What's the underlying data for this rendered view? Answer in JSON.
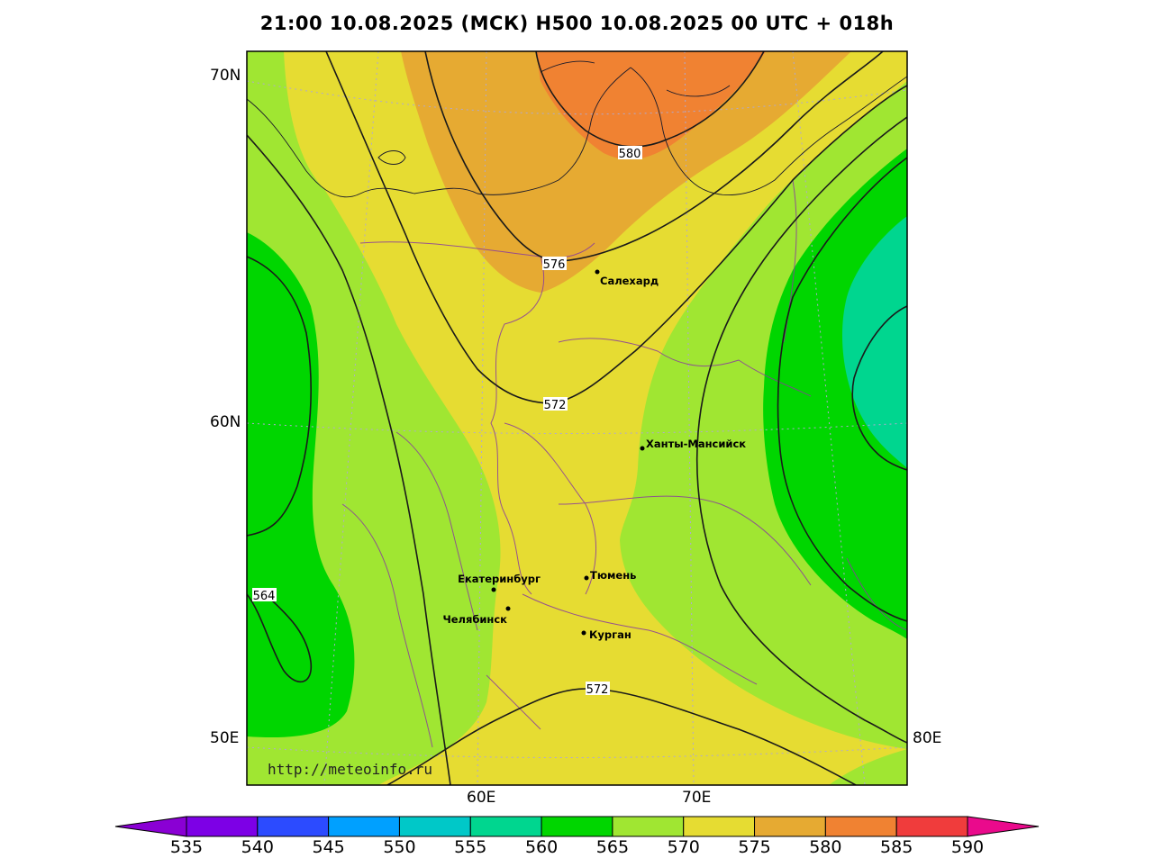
{
  "title": "21:00 10.08.2025 (МСК) H500  10.08.2025 00 UTC + 018h",
  "axes": {
    "lat_labels": [
      "70N",
      "60N",
      "50E",
      "80E"
    ],
    "lon_labels": [
      "60E",
      "70E"
    ]
  },
  "cities": [
    {
      "name": "Салехард"
    },
    {
      "name": "Ханты-Мансийск"
    },
    {
      "name": "Екатеринбург"
    },
    {
      "name": "Тюмень"
    },
    {
      "name": "Челябинск"
    },
    {
      "name": "Курган"
    }
  ],
  "contour_labels": [
    "580",
    "576",
    "572",
    "572",
    "564"
  ],
  "watermark": "http://meteoinfo.ru",
  "colorbar": {
    "ticks": [
      "535",
      "540",
      "545",
      "550",
      "555",
      "560",
      "565",
      "570",
      "575",
      "580",
      "585",
      "590"
    ],
    "colors": [
      "#8a00d4",
      "#7d00e6",
      "#2c4bff",
      "#00a0ff",
      "#00c8c8",
      "#00d68f",
      "#00d600",
      "#a0e632",
      "#e6dc32",
      "#e6aa32",
      "#f08232",
      "#f03c3c",
      "#ea0a8c"
    ]
  },
  "fill_colors": {
    "green_dark": "#00d600",
    "teal": "#00d68f",
    "green_light": "#a0e632",
    "yellow": "#e6dc32",
    "orange_light": "#e6aa32",
    "orange": "#f08232"
  }
}
